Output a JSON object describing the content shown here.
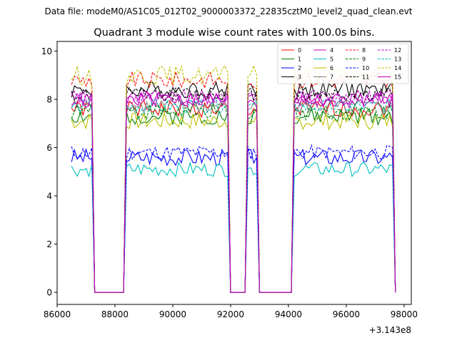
{
  "header": {
    "data_file": "Data file: modeM0/AS1C05_012T02_9000003372_22835cztM0_level2_quad_clean.evt"
  },
  "chart_data": {
    "type": "line",
    "title": "Quadrant 3 module wise count rates with 100.0s bins.",
    "xlabel": "",
    "ylabel": "",
    "x_offset_label": "+3.143e8",
    "xlim": [
      86000,
      98250
    ],
    "ylim": [
      -0.5,
      10.4
    ],
    "x_ticks": [
      86000,
      88000,
      90000,
      92000,
      94000,
      96000,
      98000
    ],
    "x_tick_labels": [
      "86000",
      "88000",
      "90000",
      "92000",
      "94000",
      "96000",
      "98000"
    ],
    "y_ticks": [
      0,
      2,
      4,
      6,
      8,
      10
    ],
    "y_tick_labels": [
      "0",
      "2",
      "4",
      "6",
      "8",
      "10"
    ],
    "legend_position": "top-right",
    "x_start": 86500,
    "x_step": 100,
    "segments": [
      {
        "from": 86500,
        "to": 87200,
        "active": true
      },
      {
        "from": 87200,
        "to": 87400,
        "active": "fall"
      },
      {
        "from": 87400,
        "to": 88200,
        "active": false
      },
      {
        "from": 88200,
        "to": 88400,
        "active": "rise"
      },
      {
        "from": 88400,
        "to": 91900,
        "active": true
      },
      {
        "from": 91900,
        "to": 92100,
        "active": "fall"
      },
      {
        "from": 92100,
        "to": 92400,
        "active": false
      },
      {
        "from": 92400,
        "to": 92600,
        "active": "rise"
      },
      {
        "from": 92600,
        "to": 92900,
        "active": true
      },
      {
        "from": 92900,
        "to": 93100,
        "active": "fall"
      },
      {
        "from": 93100,
        "to": 94000,
        "active": false
      },
      {
        "from": 94000,
        "to": 94200,
        "active": "rise"
      },
      {
        "from": 94200,
        "to": 97600,
        "active": true
      },
      {
        "from": 97600,
        "to": 97700,
        "active": "fall"
      }
    ],
    "series": [
      {
        "name": "0",
        "color": "#ff0000",
        "dash": "solid",
        "level": 7.6,
        "jitter": 0.35,
        "seed": 1
      },
      {
        "name": "1",
        "color": "#008000",
        "dash": "solid",
        "level": 7.3,
        "jitter": 0.35,
        "seed": 2
      },
      {
        "name": "2",
        "color": "#0000ff",
        "dash": "solid",
        "level": 5.6,
        "jitter": 0.35,
        "seed": 3
      },
      {
        "name": "3",
        "color": "#000000",
        "dash": "solid",
        "level": 8.4,
        "jitter": 0.35,
        "seed": 4
      },
      {
        "name": "4",
        "color": "#bf00bf",
        "dash": "solid",
        "level": 8.0,
        "jitter": 0.35,
        "seed": 5
      },
      {
        "name": "5",
        "color": "#00bfbf",
        "dash": "solid",
        "level": 5.1,
        "jitter": 0.3,
        "seed": 6
      },
      {
        "name": "6",
        "color": "#bfbf00",
        "dash": "solid",
        "level": 7.1,
        "jitter": 0.35,
        "seed": 7
      },
      {
        "name": "7",
        "color": "#808080",
        "dash": "solid",
        "level": 7.7,
        "jitter": 0.3,
        "seed": 8
      },
      {
        "name": "8",
        "color": "#ff0000",
        "dash": "dashed",
        "level": 8.8,
        "jitter": 0.35,
        "seed": 9
      },
      {
        "name": "9",
        "color": "#008000",
        "dash": "dashed",
        "level": 7.5,
        "jitter": 0.35,
        "seed": 10
      },
      {
        "name": "10",
        "color": "#0000ff",
        "dash": "dashed",
        "level": 5.8,
        "jitter": 0.3,
        "seed": 11
      },
      {
        "name": "11",
        "color": "#000000",
        "dash": "dashed",
        "level": 8.2,
        "jitter": 0.3,
        "seed": 12
      },
      {
        "name": "12",
        "color": "#bf00bf",
        "dash": "dashed",
        "level": 8.1,
        "jitter": 0.3,
        "seed": 13
      },
      {
        "name": "13",
        "color": "#00bfbf",
        "dash": "dashed",
        "level": 7.7,
        "jitter": 0.3,
        "seed": 14
      },
      {
        "name": "14",
        "color": "#bfbf00",
        "dash": "dashed",
        "level": 9.0,
        "jitter": 0.4,
        "seed": 15
      },
      {
        "name": "15",
        "color": "#bf00bf",
        "dash": "solid",
        "level": 8.0,
        "jitter": 0.3,
        "seed": 16
      }
    ]
  }
}
